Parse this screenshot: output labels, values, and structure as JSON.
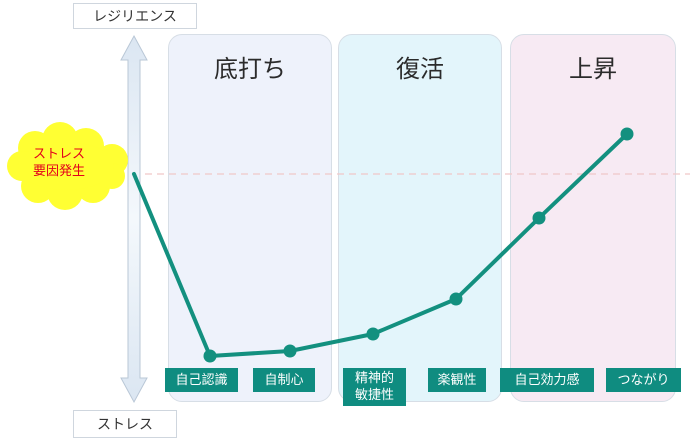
{
  "axis": {
    "top_label": "レジリエンス",
    "bottom_label": "ストレス"
  },
  "trigger": {
    "line1": "ストレス",
    "line2": "要因発生",
    "fill": "#ffff33",
    "text_color": "#e3001b"
  },
  "phases": [
    {
      "title": "底打ち",
      "bg": "#eef2fb"
    },
    {
      "title": "復活",
      "bg": "#e3f5fb"
    },
    {
      "title": "上昇",
      "bg": "#f7eaf3"
    }
  ],
  "factors": [
    {
      "text": "自己認識"
    },
    {
      "text": "自制心"
    },
    {
      "text": "精神的\n敏捷性"
    },
    {
      "text": "楽観性"
    },
    {
      "text": "自己効力感"
    },
    {
      "text": "つながり"
    }
  ],
  "curve": {
    "color": "#13907f"
  }
}
